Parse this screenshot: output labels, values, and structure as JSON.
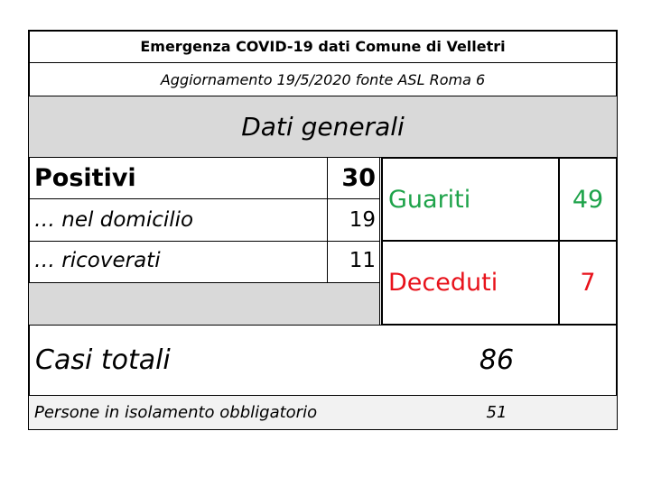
{
  "header": {
    "title": "Emergenza COVID-19 dati Comune di Velletri",
    "subtitle": "Aggiornamento 19/5/2020 fonte ASL Roma 6"
  },
  "section_title": "Dati generali",
  "positivi": {
    "label": "Positivi",
    "value": 30
  },
  "domicilio": {
    "label": "… nel domicilio",
    "value": 19
  },
  "ricoverati": {
    "label": "… ricoverati",
    "value": 11
  },
  "guariti": {
    "label": "Guariti",
    "value": 49
  },
  "deceduti": {
    "label": "Deceduti",
    "value": 7
  },
  "casi_totali": {
    "label": "Casi totali",
    "value": 86
  },
  "isolamento": {
    "label": "Persone in isolamento obbligatorio",
    "value": 51
  }
}
